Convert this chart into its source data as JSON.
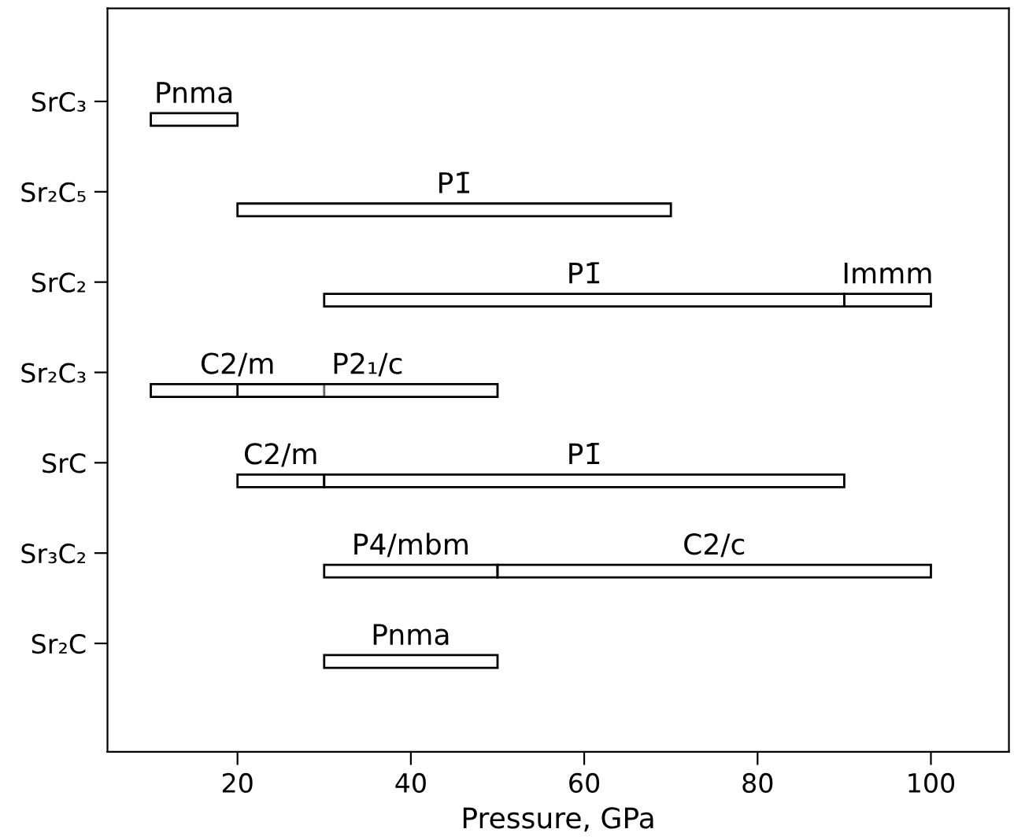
{
  "chart_data": {
    "type": "bar",
    "orientation": "horizontal",
    "xlabel": "Pressure, GPa",
    "categories": [
      "SrC₃",
      "Sr₂C₅",
      "SrC₂",
      "Sr₂C₃",
      "SrC",
      "Sr₃C₂",
      "Sr₂C"
    ],
    "xlim": [
      5,
      109
    ],
    "xticks": [
      20,
      40,
      60,
      80,
      100
    ],
    "grid": false,
    "series": [
      {
        "color": "#ffffff",
        "base": [
          10,
          20,
          30,
          10,
          20,
          30,
          30
        ],
        "values": [
          10,
          50,
          60,
          20,
          10,
          20,
          20
        ],
        "value_labels": [
          "Pnma",
          "P1̄",
          "P1̄",
          "C2/m",
          "C2/m",
          "P4/mbm",
          "Pnma"
        ]
      },
      {
        "color": "#ffffff",
        "base": [
          null,
          null,
          90,
          20,
          30,
          50,
          null
        ],
        "values": [
          null,
          null,
          10,
          30,
          60,
          50,
          null
        ],
        "value_labels": [
          null,
          null,
          "Immm",
          "P2₁/c",
          "P1̄",
          "C2/c",
          null
        ]
      }
    ]
  }
}
